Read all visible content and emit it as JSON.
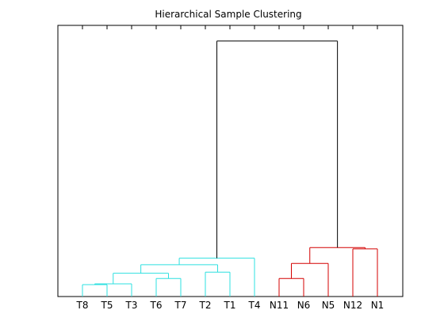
{
  "chart_data": {
    "type": "dendrogram",
    "title": "Hierarchical Sample Clustering",
    "xlabel": "",
    "ylabel": "",
    "y_axis_visible": false,
    "grid": false,
    "leaves": [
      "T8",
      "T5",
      "T3",
      "T6",
      "T7",
      "T2",
      "T1",
      "T4",
      "N11",
      "N6",
      "N5",
      "N12",
      "N1"
    ],
    "leaf_group_colors": {
      "T8": "cyan",
      "T5": "cyan",
      "T3": "cyan",
      "T6": "cyan",
      "T7": "cyan",
      "T2": "cyan",
      "T1": "cyan",
      "T4": "cyan",
      "N11": "red",
      "N6": "red",
      "N5": "red",
      "N12": "red",
      "N1": "red"
    },
    "colors": {
      "cyan": "#2ee0e0",
      "red": "#d40000",
      "root": "#000000"
    },
    "ylim": [
      0,
      1
    ],
    "merges": [
      {
        "members": [
          "T8",
          "T5"
        ],
        "height": 0.045,
        "color": "cyan"
      },
      {
        "members": [
          "T8",
          "T5",
          "T3"
        ],
        "height": 0.048,
        "color": "cyan"
      },
      {
        "members": [
          "T6",
          "T7"
        ],
        "height": 0.068,
        "color": "cyan"
      },
      {
        "members": [
          "T2",
          "T1"
        ],
        "height": 0.092,
        "color": "cyan"
      },
      {
        "members": [
          "T8",
          "T5",
          "T3",
          "T6",
          "T7"
        ],
        "height": 0.088,
        "color": "cyan"
      },
      {
        "members": [
          "T8",
          "T5",
          "T3",
          "T6",
          "T7",
          "T2",
          "T1"
        ],
        "height": 0.12,
        "color": "cyan"
      },
      {
        "members": [
          "T8",
          "T5",
          "T3",
          "T6",
          "T7",
          "T2",
          "T1",
          "T4"
        ],
        "height": 0.145,
        "color": "cyan"
      },
      {
        "members": [
          "N11",
          "N6"
        ],
        "height": 0.068,
        "color": "red"
      },
      {
        "members": [
          "N11",
          "N6",
          "N5"
        ],
        "height": 0.125,
        "color": "red"
      },
      {
        "members": [
          "N12",
          "N1"
        ],
        "height": 0.18,
        "color": "red"
      },
      {
        "members": [
          "N11",
          "N6",
          "N5",
          "N12",
          "N1"
        ],
        "height": 0.185,
        "color": "red"
      },
      {
        "members": [
          "T8",
          "T5",
          "T3",
          "T6",
          "T7",
          "T2",
          "T1",
          "T4",
          "N11",
          "N6",
          "N5",
          "N12",
          "N1"
        ],
        "height": 0.965,
        "color": "root"
      }
    ]
  }
}
